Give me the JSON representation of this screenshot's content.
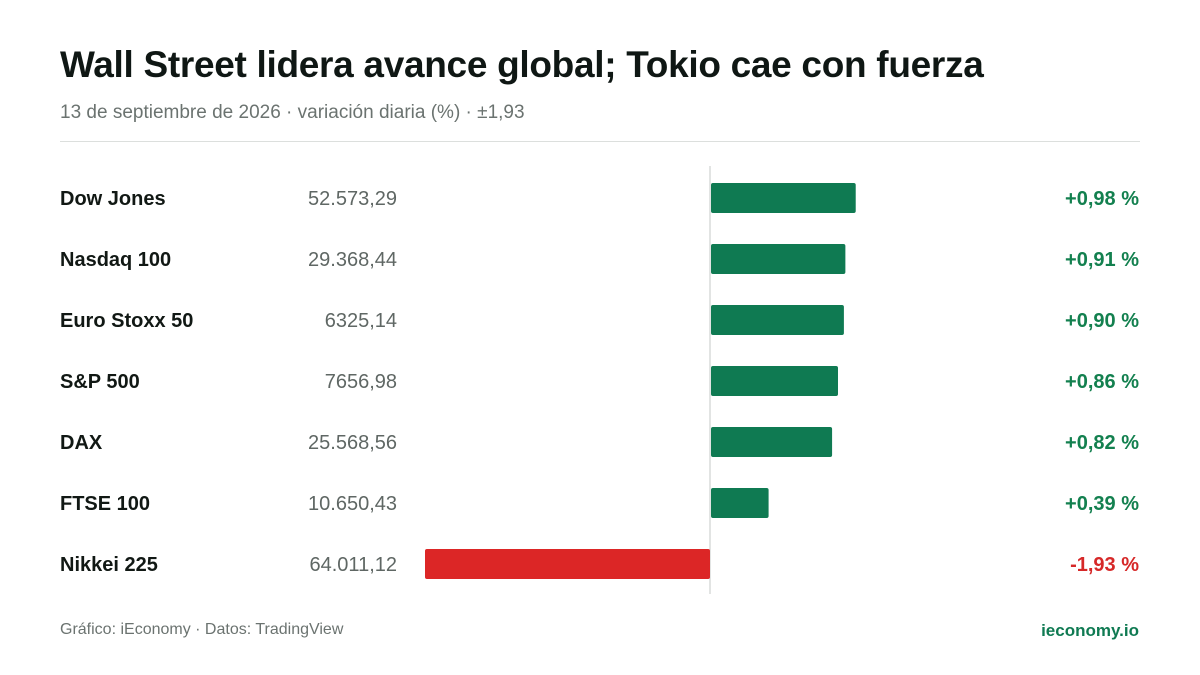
{
  "header": {
    "title": "Wall Street lidera avance global; Tokio cae con fuerza",
    "subtitle": "13 de septiembre de 2026 · variación diaria (%) · ±1,93"
  },
  "footer": {
    "source": "Gráfico: iEconomy · Datos: TradingView",
    "brand": "ieconomy.io"
  },
  "colors": {
    "positive": "#0f7a52",
    "negative": "#dc2626",
    "positive_text": "#13804f",
    "negative_text": "#d62828",
    "axis": "#d9dcda"
  },
  "chart_data": {
    "type": "bar",
    "orientation": "horizontal",
    "xlim": [
      -1.93,
      1.93
    ],
    "categories": [
      "Dow Jones",
      "Nasdaq 100",
      "Euro Stoxx 50",
      "S&P 500",
      "DAX",
      "FTSE 100",
      "Nikkei 225"
    ],
    "prices": [
      "52.573,29",
      "29.368,44",
      "6325,14",
      "7656,98",
      "25.568,56",
      "10.650,43",
      "64.011,12"
    ],
    "values": [
      0.98,
      0.91,
      0.9,
      0.86,
      0.82,
      0.39,
      -1.93
    ],
    "value_labels": [
      "+0,98 %",
      "+0,91 %",
      "+0,90 %",
      "+0,86 %",
      "+0,82 %",
      "+0,39 %",
      "-1,93 %"
    ]
  }
}
